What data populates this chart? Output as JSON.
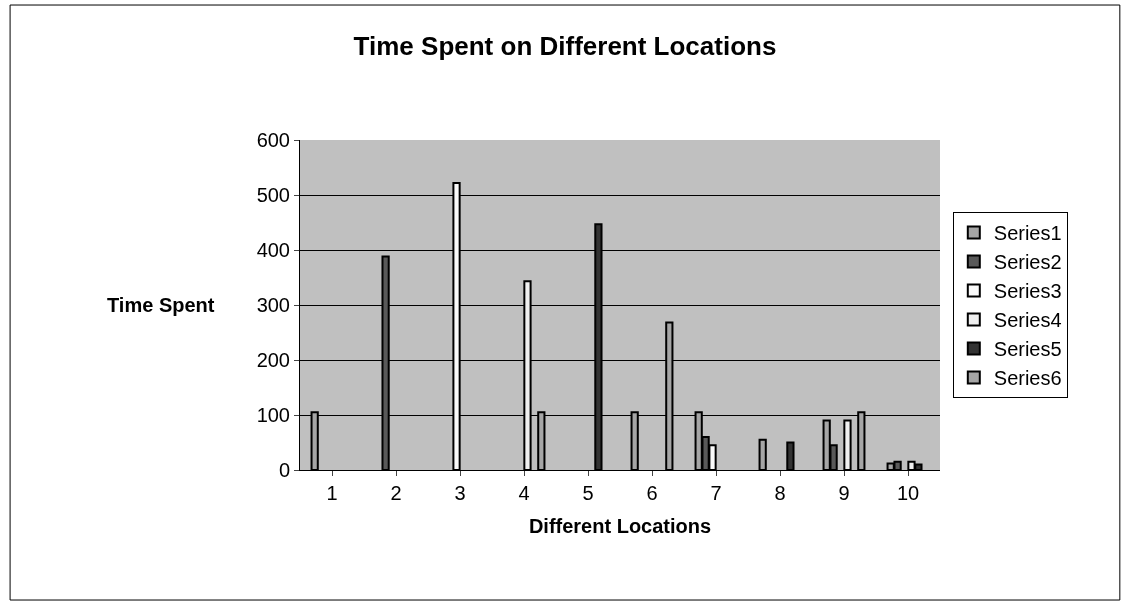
{
  "chart_data": {
    "type": "bar",
    "title": "Time Spent on Different Locations",
    "xlabel": "Different Locations",
    "ylabel": "Time Spent",
    "categories": [
      "1",
      "2",
      "3",
      "4",
      "5",
      "6",
      "7",
      "8",
      "9",
      "10"
    ],
    "series": [
      {
        "name": "Series1",
        "color": "#a6a6a6",
        "values": [
          105,
          0,
          0,
          0,
          0,
          105,
          105,
          55,
          90,
          12
        ]
      },
      {
        "name": "Series2",
        "color": "#595959",
        "values": [
          0,
          388,
          0,
          0,
          0,
          0,
          60,
          0,
          45,
          15
        ]
      },
      {
        "name": "Series3",
        "color": "#fafafa",
        "values": [
          0,
          0,
          522,
          0,
          0,
          0,
          45,
          0,
          0,
          0
        ]
      },
      {
        "name": "Series4",
        "color": "#f0f0f0",
        "values": [
          0,
          0,
          0,
          343,
          0,
          0,
          0,
          0,
          90,
          15
        ]
      },
      {
        "name": "Series5",
        "color": "#333333",
        "values": [
          0,
          0,
          0,
          0,
          447,
          0,
          0,
          50,
          0,
          10
        ]
      },
      {
        "name": "Series6",
        "color": "#a6a6a6",
        "values": [
          0,
          0,
          0,
          105,
          0,
          268,
          0,
          0,
          105,
          0
        ]
      }
    ],
    "ylim": [
      0,
      600
    ],
    "yticks": [
      0,
      100,
      200,
      300,
      400,
      500,
      600
    ],
    "grid": "y",
    "legend": "right"
  }
}
